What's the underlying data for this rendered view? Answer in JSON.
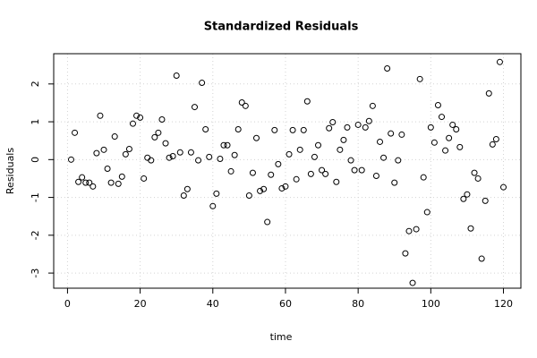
{
  "chart_data": {
    "type": "scatter",
    "title": "Standardized Residuals",
    "xlabel": "time",
    "ylabel": "Residuals",
    "x": [
      1,
      2,
      3,
      4,
      5,
      6,
      7,
      8,
      9,
      10,
      11,
      12,
      13,
      14,
      15,
      16,
      17,
      18,
      19,
      20,
      21,
      22,
      23,
      24,
      25,
      26,
      27,
      28,
      29,
      30,
      31,
      32,
      33,
      34,
      35,
      36,
      37,
      38,
      39,
      40,
      41,
      42,
      43,
      44,
      45,
      46,
      47,
      48,
      49,
      50,
      51,
      52,
      53,
      54,
      55,
      56,
      57,
      58,
      59,
      60,
      61,
      62,
      63,
      64,
      65,
      66,
      67,
      68,
      69,
      70,
      71,
      72,
      73,
      74,
      75,
      76,
      77,
      78,
      79,
      80,
      81,
      82,
      83,
      84,
      85,
      86,
      87,
      88,
      89,
      90,
      91,
      92,
      93,
      94,
      95,
      96,
      97,
      98,
      99,
      100,
      101,
      102,
      103,
      104,
      105,
      106,
      107,
      108,
      109,
      110,
      111,
      112,
      113,
      114,
      115,
      116,
      117,
      118,
      119,
      120
    ],
    "values": [
      0.0,
      0.71,
      -0.59,
      -0.47,
      -0.61,
      -0.61,
      -0.71,
      0.17,
      1.16,
      0.26,
      -0.24,
      -0.61,
      0.61,
      -0.64,
      -0.45,
      0.14,
      0.28,
      0.95,
      1.16,
      1.11,
      -0.5,
      0.05,
      -0.02,
      0.59,
      0.71,
      1.06,
      0.43,
      0.05,
      0.09,
      2.22,
      0.19,
      -0.95,
      -0.78,
      0.19,
      1.39,
      -0.02,
      2.03,
      0.8,
      0.07,
      -1.23,
      -0.9,
      0.02,
      0.38,
      0.38,
      -0.31,
      0.12,
      0.8,
      1.51,
      1.42,
      -0.95,
      -0.35,
      0.57,
      -0.83,
      -0.78,
      -1.65,
      -0.4,
      0.78,
      -0.12,
      -0.76,
      -0.71,
      0.14,
      0.78,
      -0.52,
      0.26,
      0.78,
      1.54,
      -0.38,
      0.07,
      0.38,
      -0.28,
      -0.38,
      0.83,
      0.99,
      -0.59,
      0.26,
      0.52,
      0.85,
      -0.02,
      -0.28,
      0.92,
      -0.28,
      0.85,
      1.02,
      1.42,
      -0.43,
      0.47,
      0.05,
      2.41,
      0.69,
      -0.61,
      -0.02,
      0.66,
      -2.48,
      -1.89,
      -3.26,
      -1.84,
      2.13,
      -0.47,
      -1.39,
      0.85,
      0.45,
      1.44,
      1.13,
      0.24,
      0.57,
      0.92,
      0.8,
      0.33,
      -1.04,
      -0.92,
      -1.82,
      -0.35,
      -0.5,
      -2.62,
      -1.09,
      1.75,
      0.4,
      0.54,
      2.58,
      -0.73
    ],
    "color": "#000000",
    "xlim": [
      -3.8,
      124.8
    ],
    "xticks": [
      0,
      20,
      40,
      60,
      80,
      100,
      120
    ],
    "ylim": [
      -3.4,
      2.8
    ],
    "yticks": [
      -3,
      -2,
      -1,
      0,
      1,
      2
    ],
    "grid": true
  }
}
